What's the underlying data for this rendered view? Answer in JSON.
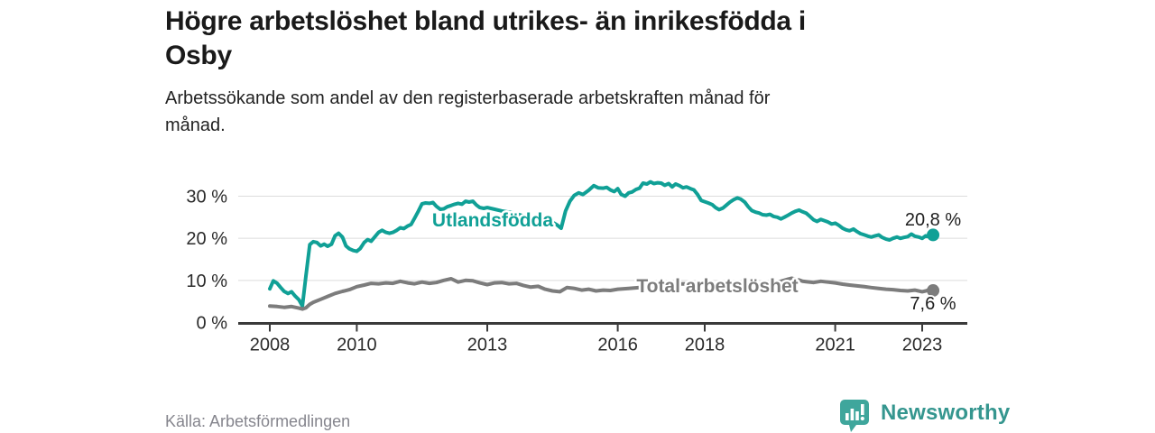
{
  "header": {
    "title_lines": [
      "Högre arbetslöshet bland utrikes- än inrikesfödda i",
      "Osby"
    ],
    "subtitle_lines": [
      "Arbetssökande som andel av den registerbaserade arbetskraften månad för",
      "månad."
    ]
  },
  "footer": {
    "source": "Källa: Arbetsförmedlingen",
    "brand": "Newsworthy",
    "brand_icon": "bar-chart-speech-bubble-icon",
    "brand_color": "#3a9b93"
  },
  "chart_data": {
    "type": "line",
    "title": "Högre arbetslöshet bland utrikes- än inrikesfödda i Osby",
    "subtitle": "Arbetssökande som andel av den registerbaserade arbetskraften månad för månad.",
    "xlabel": "",
    "ylabel": "",
    "legend_position": "inline-labels",
    "x_axis": {
      "ticks": [
        2008,
        2010,
        2013,
        2016,
        2018,
        2021,
        2023
      ],
      "range": [
        2007.27,
        2024.04
      ]
    },
    "y_axis": {
      "ticks": [
        0,
        10,
        20,
        30
      ],
      "tick_suffix": " %",
      "range": [
        0,
        35.8
      ],
      "grid": true
    },
    "series": [
      {
        "name": "Utlandsfödda",
        "color": "#10a096",
        "end_label": "20,8 %",
        "end_value": 20.8,
        "points": [
          [
            2008.0,
            8.0
          ],
          [
            2008.08,
            9.9
          ],
          [
            2008.17,
            9.3
          ],
          [
            2008.25,
            8.3
          ],
          [
            2008.33,
            7.4
          ],
          [
            2008.42,
            6.9
          ],
          [
            2008.5,
            7.3
          ],
          [
            2008.58,
            6.3
          ],
          [
            2008.67,
            5.4
          ],
          [
            2008.75,
            3.9
          ],
          [
            2008.83,
            11.0
          ],
          [
            2008.92,
            18.5
          ],
          [
            2009.0,
            19.2
          ],
          [
            2009.08,
            19.0
          ],
          [
            2009.17,
            18.2
          ],
          [
            2009.25,
            18.6
          ],
          [
            2009.33,
            18.1
          ],
          [
            2009.42,
            18.6
          ],
          [
            2009.5,
            20.6
          ],
          [
            2009.58,
            21.2
          ],
          [
            2009.67,
            20.3
          ],
          [
            2009.75,
            18.2
          ],
          [
            2009.83,
            17.5
          ],
          [
            2009.92,
            17.1
          ],
          [
            2010.0,
            16.9
          ],
          [
            2010.08,
            17.6
          ],
          [
            2010.17,
            19.0
          ],
          [
            2010.25,
            19.7
          ],
          [
            2010.33,
            19.3
          ],
          [
            2010.42,
            20.4
          ],
          [
            2010.5,
            21.4
          ],
          [
            2010.58,
            21.9
          ],
          [
            2010.67,
            21.4
          ],
          [
            2010.75,
            21.2
          ],
          [
            2010.83,
            21.4
          ],
          [
            2010.92,
            21.9
          ],
          [
            2011.0,
            22.5
          ],
          [
            2011.08,
            22.3
          ],
          [
            2011.17,
            22.9
          ],
          [
            2011.25,
            23.3
          ],
          [
            2011.33,
            24.8
          ],
          [
            2011.42,
            26.5
          ],
          [
            2011.5,
            28.2
          ],
          [
            2011.58,
            28.4
          ],
          [
            2011.67,
            28.3
          ],
          [
            2011.75,
            28.5
          ],
          [
            2011.83,
            27.6
          ],
          [
            2011.92,
            26.9
          ],
          [
            2012.0,
            27.0
          ],
          [
            2012.08,
            27.5
          ],
          [
            2012.17,
            27.8
          ],
          [
            2012.25,
            28.1
          ],
          [
            2012.33,
            28.3
          ],
          [
            2012.42,
            28.1
          ],
          [
            2012.5,
            28.8
          ],
          [
            2012.58,
            28.6
          ],
          [
            2012.67,
            28.8
          ],
          [
            2012.75,
            27.9
          ],
          [
            2012.83,
            27.3
          ],
          [
            2012.92,
            27.1
          ],
          [
            2013.0,
            27.3
          ],
          [
            2013.17,
            26.9
          ],
          [
            2013.33,
            26.5
          ],
          [
            2013.5,
            26.2
          ],
          [
            2013.67,
            25.8
          ],
          [
            2013.83,
            25.3
          ],
          [
            2014.0,
            25.0
          ],
          [
            2014.17,
            24.6
          ],
          [
            2014.33,
            24.3
          ],
          [
            2014.5,
            23.8
          ],
          [
            2014.6,
            23.2
          ],
          [
            2014.7,
            22.4
          ],
          [
            2014.8,
            26.5
          ],
          [
            2014.9,
            28.8
          ],
          [
            2015.0,
            30.2
          ],
          [
            2015.1,
            30.8
          ],
          [
            2015.2,
            30.4
          ],
          [
            2015.33,
            31.4
          ],
          [
            2015.45,
            32.5
          ],
          [
            2015.55,
            32.0
          ],
          [
            2015.67,
            31.9
          ],
          [
            2015.75,
            32.1
          ],
          [
            2015.83,
            31.5
          ],
          [
            2015.92,
            31.1
          ],
          [
            2016.0,
            31.8
          ],
          [
            2016.08,
            30.4
          ],
          [
            2016.17,
            30.0
          ],
          [
            2016.25,
            30.8
          ],
          [
            2016.33,
            31.0
          ],
          [
            2016.42,
            31.6
          ],
          [
            2016.5,
            31.9
          ],
          [
            2016.58,
            33.1
          ],
          [
            2016.67,
            32.9
          ],
          [
            2016.75,
            33.4
          ],
          [
            2016.83,
            33.0
          ],
          [
            2016.92,
            33.2
          ],
          [
            2017.0,
            33.1
          ],
          [
            2017.08,
            32.6
          ],
          [
            2017.17,
            33.0
          ],
          [
            2017.25,
            32.2
          ],
          [
            2017.33,
            32.9
          ],
          [
            2017.42,
            32.5
          ],
          [
            2017.5,
            32.0
          ],
          [
            2017.58,
            32.2
          ],
          [
            2017.67,
            31.8
          ],
          [
            2017.75,
            31.5
          ],
          [
            2017.83,
            30.5
          ],
          [
            2017.92,
            29.0
          ],
          [
            2018.0,
            28.7
          ],
          [
            2018.08,
            28.4
          ],
          [
            2018.17,
            28.0
          ],
          [
            2018.25,
            27.3
          ],
          [
            2018.33,
            26.8
          ],
          [
            2018.42,
            27.2
          ],
          [
            2018.5,
            27.9
          ],
          [
            2018.58,
            28.6
          ],
          [
            2018.67,
            29.2
          ],
          [
            2018.75,
            29.6
          ],
          [
            2018.83,
            29.3
          ],
          [
            2018.92,
            28.6
          ],
          [
            2019.0,
            27.5
          ],
          [
            2019.08,
            26.6
          ],
          [
            2019.17,
            26.2
          ],
          [
            2019.25,
            26.0
          ],
          [
            2019.33,
            25.6
          ],
          [
            2019.42,
            25.5
          ],
          [
            2019.5,
            25.7
          ],
          [
            2019.58,
            25.2
          ],
          [
            2019.67,
            25.0
          ],
          [
            2019.75,
            24.6
          ],
          [
            2019.83,
            25.0
          ],
          [
            2019.92,
            25.5
          ],
          [
            2020.0,
            26.0
          ],
          [
            2020.08,
            26.4
          ],
          [
            2020.17,
            26.7
          ],
          [
            2020.25,
            26.3
          ],
          [
            2020.33,
            26.0
          ],
          [
            2020.42,
            25.2
          ],
          [
            2020.5,
            24.4
          ],
          [
            2020.58,
            24.0
          ],
          [
            2020.67,
            24.5
          ],
          [
            2020.75,
            24.2
          ],
          [
            2020.83,
            23.9
          ],
          [
            2020.92,
            23.4
          ],
          [
            2021.0,
            23.6
          ],
          [
            2021.08,
            23.1
          ],
          [
            2021.17,
            22.4
          ],
          [
            2021.25,
            22.0
          ],
          [
            2021.33,
            21.8
          ],
          [
            2021.42,
            22.2
          ],
          [
            2021.5,
            21.6
          ],
          [
            2021.58,
            21.1
          ],
          [
            2021.67,
            20.8
          ],
          [
            2021.75,
            20.5
          ],
          [
            2021.83,
            20.3
          ],
          [
            2021.92,
            20.6
          ],
          [
            2022.0,
            20.8
          ],
          [
            2022.08,
            20.2
          ],
          [
            2022.17,
            19.8
          ],
          [
            2022.25,
            19.6
          ],
          [
            2022.33,
            20.0
          ],
          [
            2022.42,
            20.3
          ],
          [
            2022.5,
            20.0
          ],
          [
            2022.58,
            20.2
          ],
          [
            2022.67,
            20.4
          ],
          [
            2022.75,
            21.0
          ],
          [
            2022.83,
            20.5
          ],
          [
            2022.92,
            20.3
          ],
          [
            2023.0,
            20.0
          ],
          [
            2023.08,
            20.6
          ],
          [
            2023.17,
            20.4
          ],
          [
            2023.25,
            20.8
          ]
        ]
      },
      {
        "name": "Total arbetslöshet",
        "color": "#7c7c7c",
        "end_label": "7,6 %",
        "end_value": 7.6,
        "points": [
          [
            2008.0,
            3.9
          ],
          [
            2008.17,
            3.8
          ],
          [
            2008.33,
            3.6
          ],
          [
            2008.5,
            3.8
          ],
          [
            2008.67,
            3.4
          ],
          [
            2008.75,
            3.2
          ],
          [
            2008.83,
            3.5
          ],
          [
            2008.92,
            4.3
          ],
          [
            2009.0,
            4.8
          ],
          [
            2009.17,
            5.5
          ],
          [
            2009.33,
            6.2
          ],
          [
            2009.5,
            6.9
          ],
          [
            2009.67,
            7.4
          ],
          [
            2009.83,
            7.8
          ],
          [
            2010.0,
            8.5
          ],
          [
            2010.17,
            8.9
          ],
          [
            2010.33,
            9.3
          ],
          [
            2010.5,
            9.2
          ],
          [
            2010.67,
            9.4
          ],
          [
            2010.83,
            9.3
          ],
          [
            2011.0,
            9.8
          ],
          [
            2011.17,
            9.4
          ],
          [
            2011.33,
            9.2
          ],
          [
            2011.5,
            9.6
          ],
          [
            2011.67,
            9.3
          ],
          [
            2011.83,
            9.5
          ],
          [
            2012.0,
            10.0
          ],
          [
            2012.17,
            10.4
          ],
          [
            2012.33,
            9.6
          ],
          [
            2012.5,
            10.0
          ],
          [
            2012.67,
            9.9
          ],
          [
            2012.83,
            9.4
          ],
          [
            2013.0,
            9.0
          ],
          [
            2013.17,
            9.4
          ],
          [
            2013.33,
            9.5
          ],
          [
            2013.5,
            9.2
          ],
          [
            2013.67,
            9.3
          ],
          [
            2013.83,
            8.8
          ],
          [
            2014.0,
            8.4
          ],
          [
            2014.17,
            8.6
          ],
          [
            2014.33,
            7.9
          ],
          [
            2014.5,
            7.5
          ],
          [
            2014.67,
            7.3
          ],
          [
            2014.83,
            8.3
          ],
          [
            2015.0,
            8.1
          ],
          [
            2015.17,
            7.7
          ],
          [
            2015.33,
            7.9
          ],
          [
            2015.5,
            7.5
          ],
          [
            2015.67,
            7.7
          ],
          [
            2015.83,
            7.6
          ],
          [
            2016.0,
            7.9
          ],
          [
            2016.25,
            8.1
          ],
          [
            2016.5,
            8.3
          ],
          [
            2016.75,
            8.6
          ],
          [
            2017.0,
            8.8
          ],
          [
            2017.25,
            9.0
          ],
          [
            2017.5,
            9.2
          ],
          [
            2017.75,
            9.1
          ],
          [
            2018.0,
            9.0
          ],
          [
            2018.25,
            9.1
          ],
          [
            2018.5,
            9.3
          ],
          [
            2018.75,
            9.1
          ],
          [
            2019.0,
            9.0
          ],
          [
            2019.25,
            9.2
          ],
          [
            2019.5,
            9.4
          ],
          [
            2019.75,
            9.8
          ],
          [
            2019.92,
            10.3
          ],
          [
            2020.0,
            10.5
          ],
          [
            2020.08,
            10.3
          ],
          [
            2020.17,
            10.1
          ],
          [
            2020.25,
            9.8
          ],
          [
            2020.33,
            9.7
          ],
          [
            2020.5,
            9.5
          ],
          [
            2020.67,
            9.8
          ],
          [
            2020.83,
            9.6
          ],
          [
            2021.0,
            9.4
          ],
          [
            2021.17,
            9.1
          ],
          [
            2021.33,
            8.9
          ],
          [
            2021.5,
            8.7
          ],
          [
            2021.67,
            8.5
          ],
          [
            2021.83,
            8.3
          ],
          [
            2022.0,
            8.1
          ],
          [
            2022.17,
            7.9
          ],
          [
            2022.33,
            7.8
          ],
          [
            2022.5,
            7.6
          ],
          [
            2022.67,
            7.5
          ],
          [
            2022.83,
            7.7
          ],
          [
            2023.0,
            7.3
          ],
          [
            2023.08,
            7.5
          ],
          [
            2023.17,
            7.8
          ],
          [
            2023.25,
            7.6
          ]
        ]
      }
    ]
  }
}
